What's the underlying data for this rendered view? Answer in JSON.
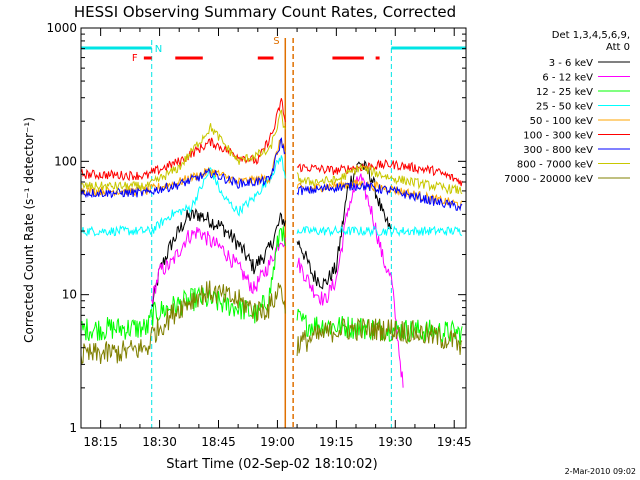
{
  "chart_data": {
    "type": "line",
    "title": "HESSI Observing Summary Count Rates, Corrected",
    "xlabel": "Start Time (02-Sep-02 18:10:02)",
    "ylabel": "Corrected Count Rate (s⁻¹ detector⁻¹)",
    "yscale": "log",
    "ylim": [
      1,
      1000
    ],
    "xlim": [
      "18:10",
      "19:48"
    ],
    "x_ticks": [
      "18:15",
      "18:30",
      "18:45",
      "19:00",
      "19:15",
      "19:30",
      "19:45"
    ],
    "y_ticks": [
      "1",
      "10",
      "100",
      "1000"
    ],
    "grid": false,
    "legend_position": "right",
    "legend_header": [
      "Det 1,3,4,5,6,9,",
      "Att 0"
    ],
    "footer_stamp": "2-Mar-2010 09:02",
    "markers": {
      "F": {
        "label": "F",
        "color": "#ff0000"
      },
      "N": {
        "label": "N",
        "color": "#00e5e5"
      },
      "S": {
        "label": "S",
        "color": "#e07000"
      }
    },
    "flare_intervals": [
      [
        "18:26",
        "18:28"
      ],
      [
        "18:34",
        "18:41"
      ],
      [
        "18:55",
        "18:59"
      ],
      [
        "19:14",
        "19:22"
      ],
      [
        "19:25",
        "19:26"
      ]
    ],
    "night_intervals": [
      [
        "18:10",
        "18:28"
      ],
      [
        "19:29",
        "19:48"
      ]
    ],
    "saa_interval": [
      "19:02",
      "19:04"
    ],
    "series": [
      {
        "name": "3 - 6 keV",
        "color": "#000000",
        "x": [
          "18:28",
          "18:30",
          "18:33",
          "18:37",
          "18:40",
          "18:43",
          "18:46",
          "18:50",
          "18:54",
          "18:58",
          "19:01",
          "19:06",
          "19:09",
          "19:12",
          "19:15",
          "19:18",
          "19:21",
          "19:24",
          "19:27",
          "19:29"
        ],
        "y": [
          8,
          15,
          24,
          38,
          40,
          36,
          32,
          24,
          16,
          22,
          38,
          23,
          14,
          12,
          16,
          65,
          100,
          75,
          38,
          30
        ]
      },
      {
        "name": "6 - 12 keV",
        "color": "#ff00ff",
        "x": [
          "18:28",
          "18:30",
          "18:33",
          "18:37",
          "18:40",
          "18:43",
          "18:46",
          "18:50",
          "18:54",
          "18:58",
          "19:01",
          "19:06",
          "19:09",
          "19:12",
          "19:15",
          "19:18",
          "19:21",
          "19:24",
          "19:27",
          "19:29",
          "19:32"
        ],
        "y": [
          9,
          15,
          17,
          27,
          30,
          25,
          22,
          16,
          11,
          17,
          27,
          16,
          11,
          9,
          13,
          45,
          78,
          42,
          18,
          13,
          2
        ]
      },
      {
        "name": "12 - 25 keV",
        "color": "#00ff00",
        "x": [
          "18:10",
          "18:20",
          "18:27",
          "18:28",
          "18:30",
          "18:40",
          "18:50",
          "18:55",
          "18:58",
          "19:01",
          "19:04",
          "19:07",
          "19:15",
          "19:25",
          "19:29",
          "19:34",
          "19:45",
          "19:47"
        ],
        "y": [
          5.5,
          5.6,
          5.6,
          7,
          7.5,
          9.5,
          8,
          7,
          10,
          35,
          7,
          6,
          5.8,
          5.6,
          5.5,
          5.4,
          5.2,
          5.1
        ]
      },
      {
        "name": "25 - 50 keV",
        "color": "#00ffff",
        "x": [
          "18:10",
          "18:27",
          "18:28",
          "18:33",
          "18:38",
          "18:43",
          "18:46",
          "18:50",
          "18:54",
          "18:58",
          "19:01",
          "19:04",
          "19:07",
          "19:15",
          "19:25",
          "19:29",
          "19:35",
          "19:47"
        ],
        "y": [
          30,
          30,
          30,
          40,
          45,
          88,
          55,
          42,
          53,
          75,
          110,
          31,
          30,
          30,
          30,
          30,
          30,
          30
        ]
      },
      {
        "name": "50 - 100 keV",
        "color": "#ffa500",
        "x": [
          "18:10",
          "18:27",
          "18:28",
          "18:35",
          "18:43",
          "18:50",
          "18:58",
          "19:01",
          "19:04",
          "19:07",
          "19:15",
          "19:21",
          "19:29",
          "19:40",
          "19:47"
        ],
        "y": [
          60,
          60,
          62,
          70,
          85,
          70,
          75,
          150,
          65,
          62,
          66,
          68,
          62,
          52,
          47
        ]
      },
      {
        "name": "100 - 300 keV",
        "color": "#ff0000",
        "x": [
          "18:10",
          "18:27",
          "18:28",
          "18:35",
          "18:43",
          "18:50",
          "18:55",
          "18:59",
          "19:01",
          "19:04",
          "19:07",
          "19:15",
          "19:20",
          "19:29",
          "19:40",
          "19:47"
        ],
        "y": [
          80,
          78,
          82,
          100,
          140,
          110,
          100,
          170,
          290,
          90,
          90,
          85,
          90,
          95,
          85,
          70
        ]
      },
      {
        "name": "300 - 800 keV",
        "color": "#0000ff",
        "x": [
          "18:10",
          "18:27",
          "18:28",
          "18:35",
          "18:43",
          "18:50",
          "18:58",
          "19:01",
          "19:04",
          "19:07",
          "19:15",
          "19:21",
          "19:29",
          "19:40",
          "19:47"
        ],
        "y": [
          58,
          58,
          60,
          67,
          82,
          68,
          72,
          145,
          62,
          60,
          64,
          66,
          60,
          50,
          45
        ]
      },
      {
        "name": "800 - 7000 keV",
        "color": "#c8c800",
        "x": [
          "18:10",
          "18:27",
          "18:28",
          "18:35",
          "18:43",
          "18:50",
          "18:58",
          "19:01",
          "19:04",
          "19:07",
          "19:15",
          "19:21",
          "19:29",
          "19:40",
          "19:47"
        ],
        "y": [
          65,
          65,
          68,
          90,
          180,
          100,
          120,
          230,
          80,
          70,
          72,
          90,
          75,
          65,
          60
        ]
      },
      {
        "name": "7000 - 20000 keV",
        "color": "#808000",
        "x": [
          "18:10",
          "18:20",
          "18:27",
          "18:28",
          "18:35",
          "18:40",
          "18:43",
          "18:50",
          "18:55",
          "18:58",
          "19:01",
          "19:03",
          "19:07",
          "19:15",
          "19:25",
          "19:29",
          "19:35",
          "19:45",
          "19:47"
        ],
        "y": [
          3.5,
          3.7,
          4,
          5,
          8,
          10,
          10.5,
          9,
          7.5,
          8,
          12,
          4,
          4.5,
          5.5,
          5.5,
          5.5,
          5.2,
          4.5,
          3.8
        ]
      }
    ]
  }
}
